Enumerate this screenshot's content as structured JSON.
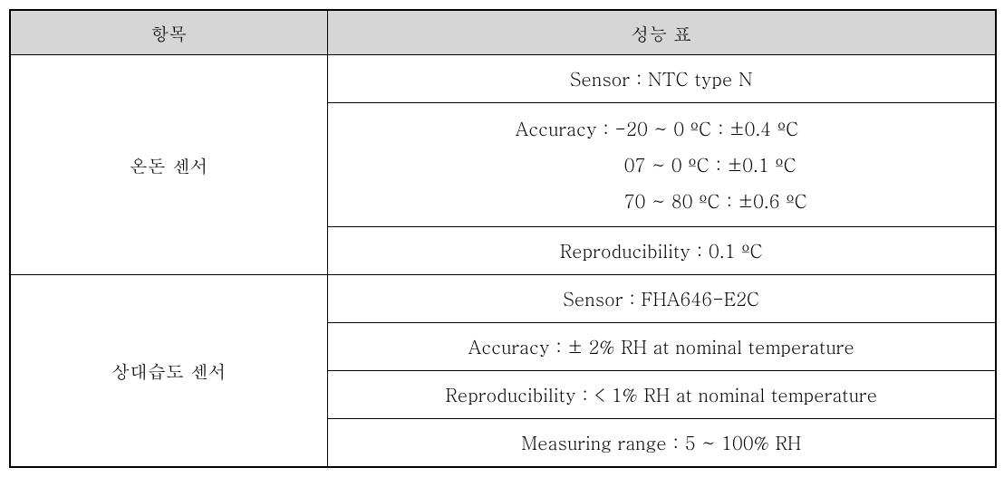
{
  "headers": {
    "col1": "항목",
    "col2": "성능 표"
  },
  "rows": {
    "temp": {
      "label": "온돈 센서",
      "sensor": "Sensor : NTC type N",
      "accuracy_line1": "Accuracy : -20 ~ 0 ºC : ±0.4 ºC",
      "accuracy_line2": "07 ~ 0 ºC : ±0.1 ºC",
      "accuracy_line3": "70 ~ 80 ºC : ±0.6 ºC",
      "reproducibility": "Reproducibility : 0.1 ºC"
    },
    "humidity": {
      "label": "상대습도 센서",
      "sensor": "Sensor : FHA646-E2C",
      "accuracy": "Accuracy : ± 2% RH at nominal temperature",
      "reproducibility": "Reproducibility : < 1% RH at nominal temperature",
      "range": "Measuring range : 5 ~ 100% RH"
    }
  },
  "colors": {
    "header_bg": "#d6d6d6",
    "border": "#000000",
    "background": "#ffffff",
    "text": "#000000"
  },
  "fontsize": 20
}
